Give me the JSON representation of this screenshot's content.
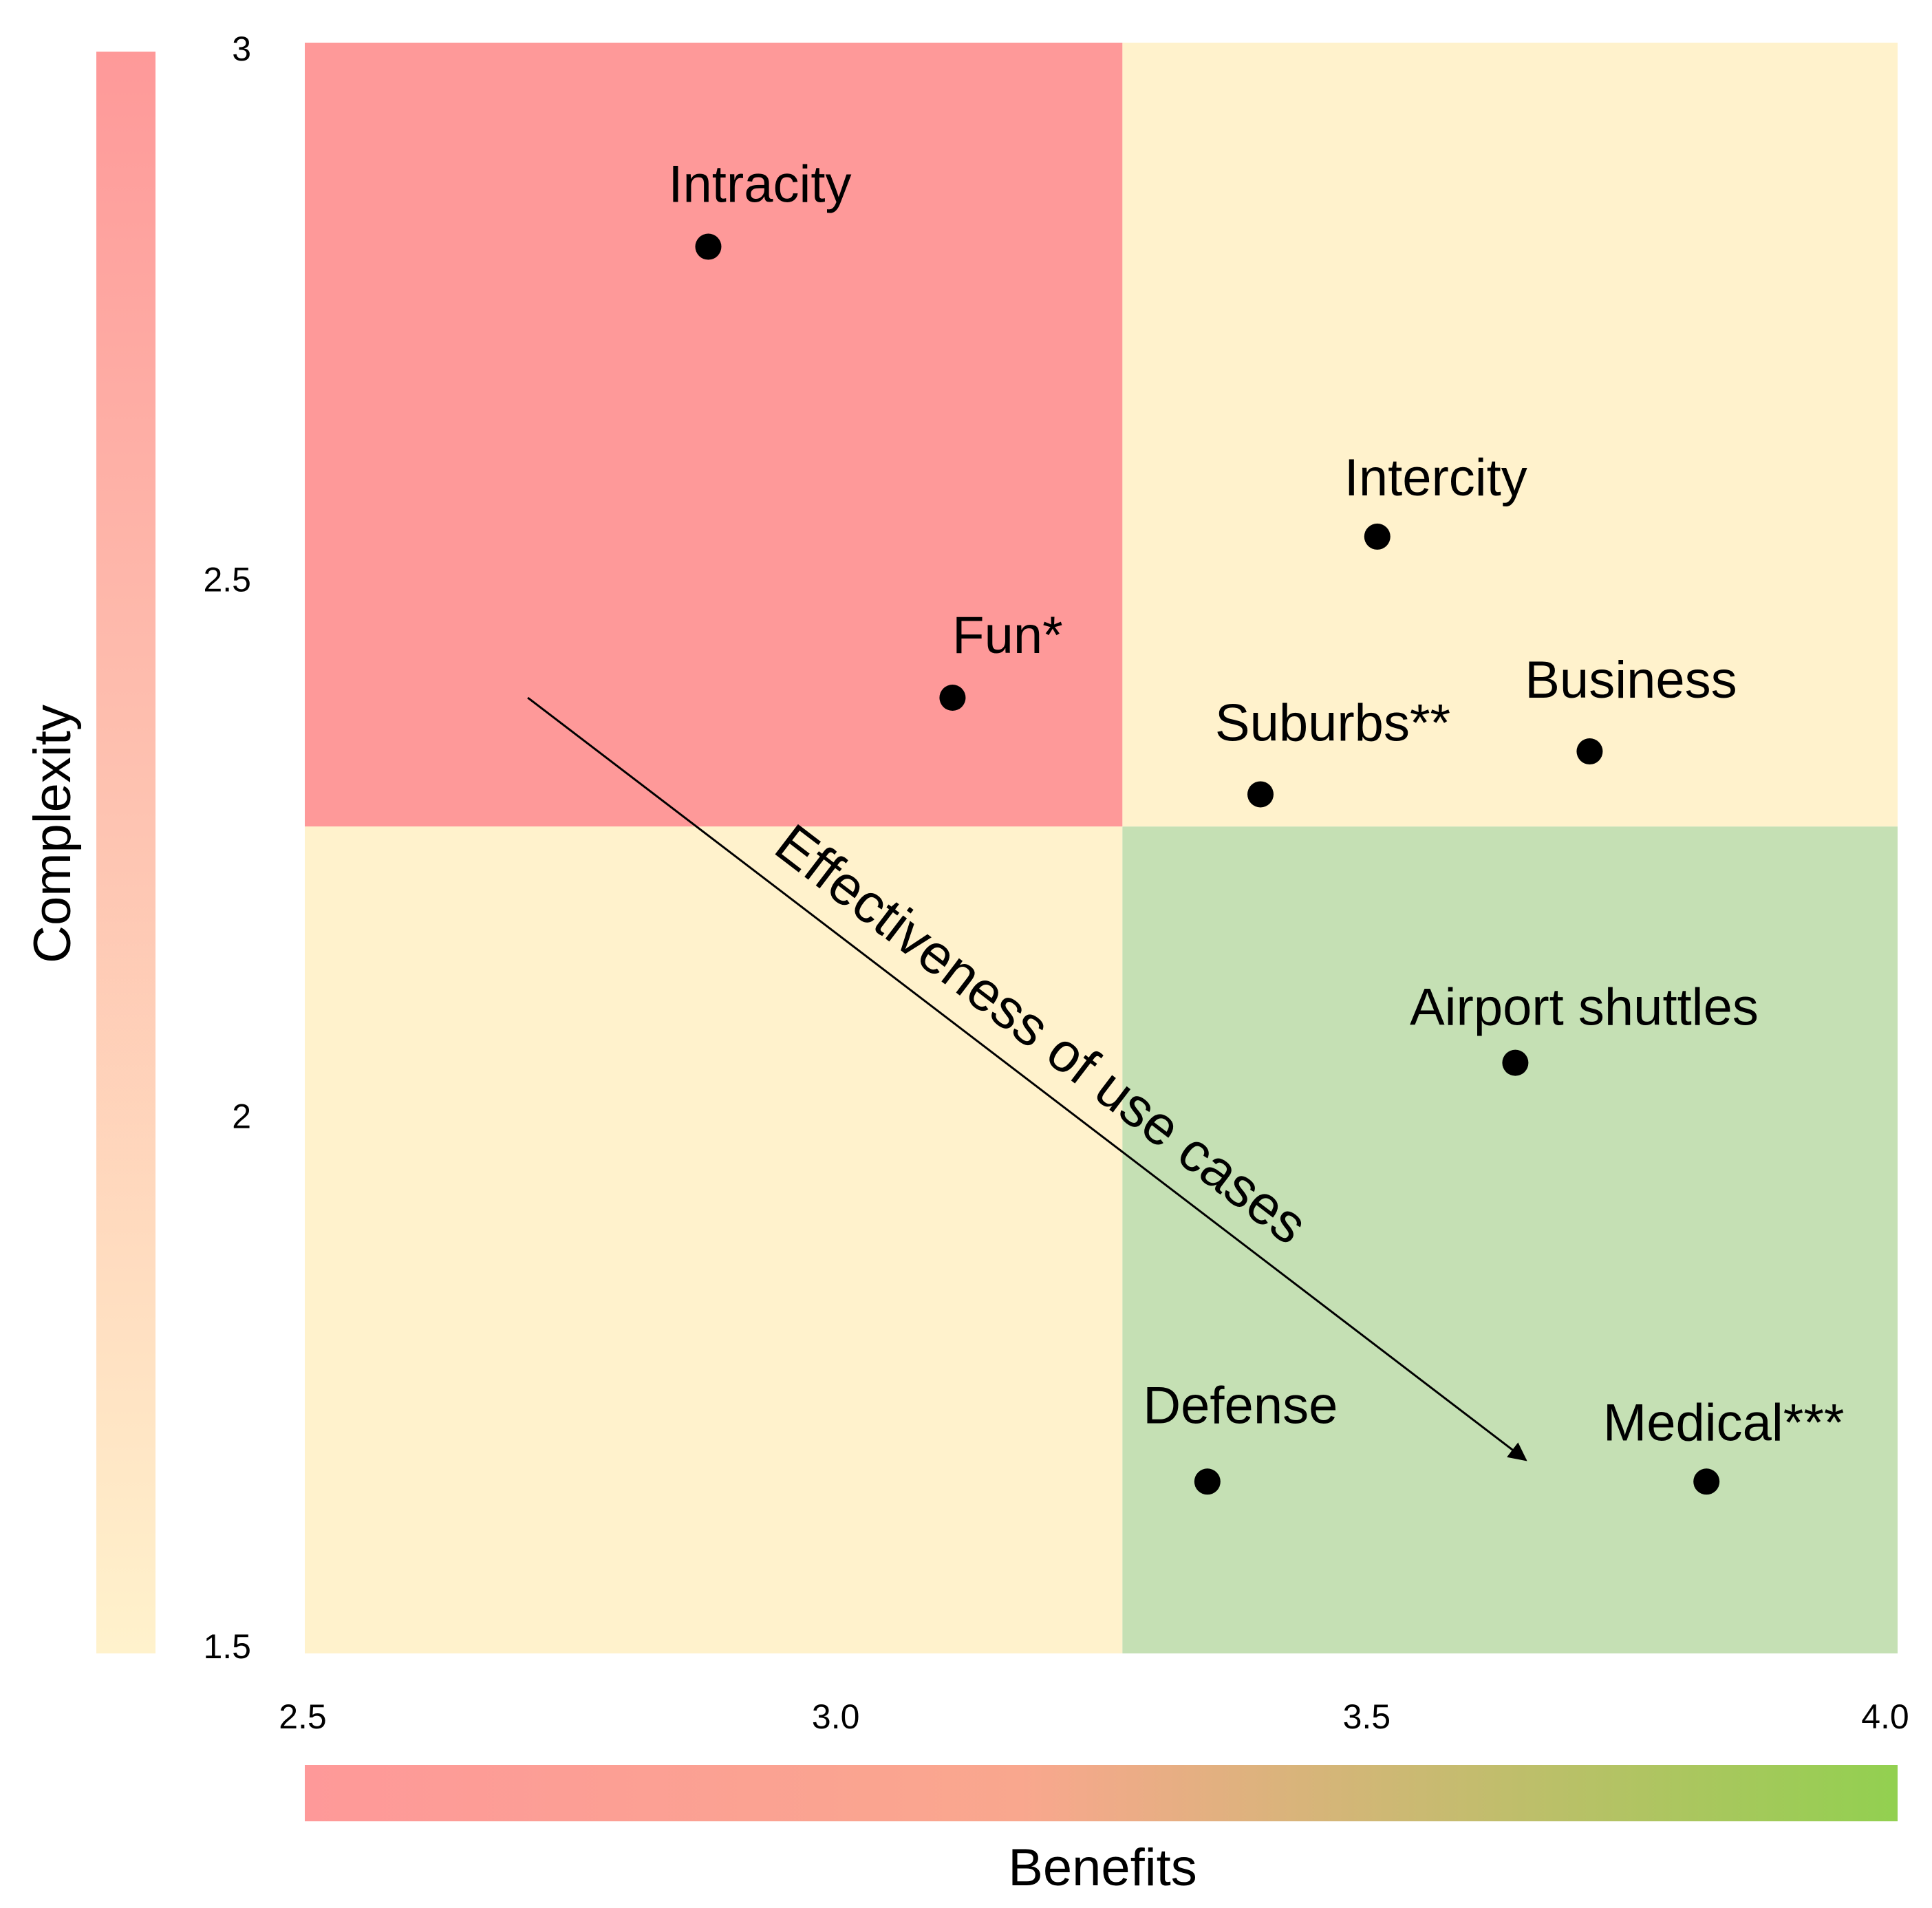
{
  "chart_data": {
    "type": "scatter",
    "xlabel": "Benefits",
    "ylabel": "Complexity",
    "xlim": [
      2.5,
      4.0
    ],
    "ylim": [
      1.5,
      3.0
    ],
    "x_ticks": [
      "2.5",
      "3.0",
      "3.5",
      "4.0"
    ],
    "y_ticks": [
      "1.5",
      "2",
      "2.5",
      "3"
    ],
    "quadrant_split": {
      "x": 3.27,
      "y": 2.27
    },
    "quadrant_colors": {
      "top_left": "#fe9999",
      "top_right": "#fff2cc",
      "bottom_left": "#fff2cc",
      "bottom_right": "#c5e0b4"
    },
    "x_gradient": [
      "#fe9999",
      "#92d050"
    ],
    "y_gradient": [
      "#fe9999",
      "#fff2cc"
    ],
    "points": [
      {
        "label": "Intracity",
        "x": 2.88,
        "y": 2.81
      },
      {
        "label": "Fun*",
        "x": 3.11,
        "y": 2.39
      },
      {
        "label": "Intercity",
        "x": 3.51,
        "y": 2.54
      },
      {
        "label": "Business",
        "x": 3.71,
        "y": 2.34
      },
      {
        "label": "Suburbs**",
        "x": 3.4,
        "y": 2.3
      },
      {
        "label": "Airport shuttles",
        "x": 3.64,
        "y": 2.05
      },
      {
        "label": "Defense",
        "x": 3.35,
        "y": 1.66
      },
      {
        "label": "Medical***",
        "x": 3.82,
        "y": 1.66
      }
    ],
    "arrow": {
      "label": "Effectiveness of use cases",
      "from": {
        "x": 2.71,
        "y": 2.39
      },
      "to": {
        "x": 3.65,
        "y": 1.68
      }
    }
  }
}
